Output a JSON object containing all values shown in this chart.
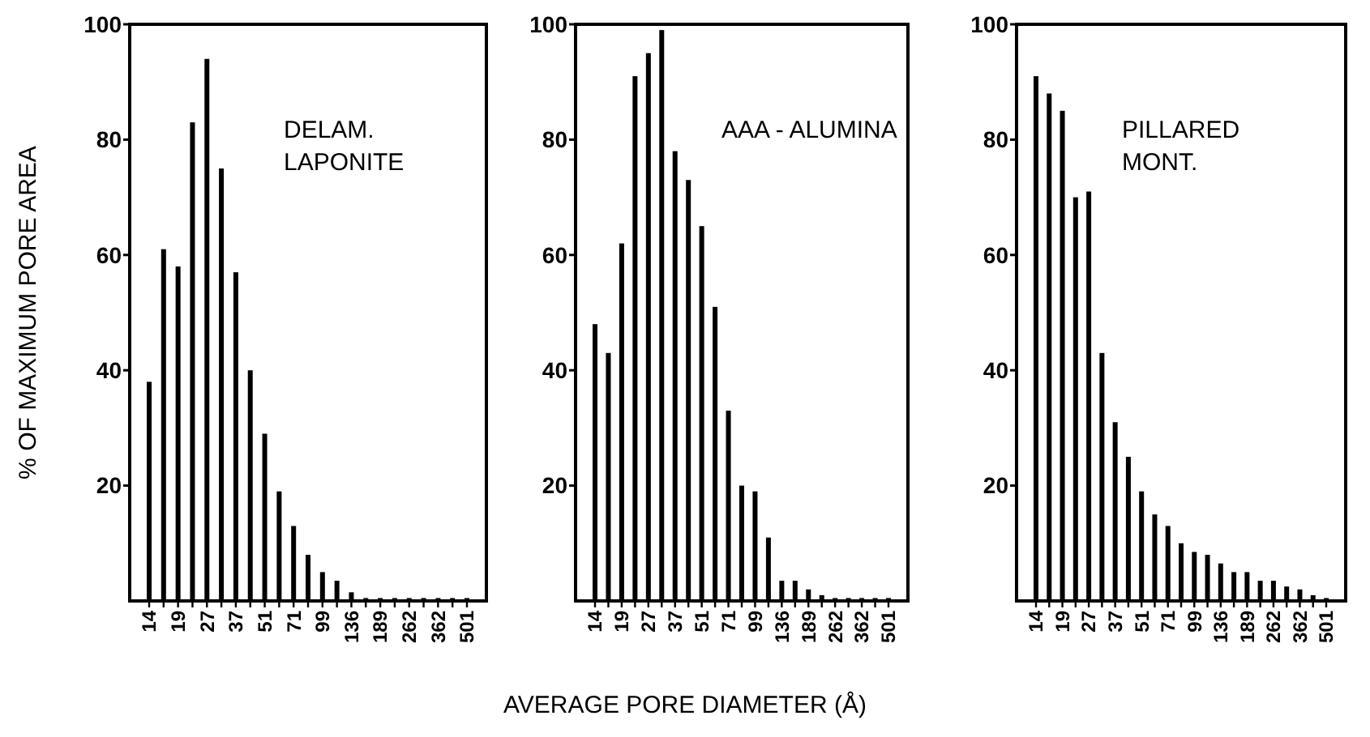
{
  "chart_data": [
    {
      "type": "bar",
      "ylabel": "% OF MAXIMUM PORE AREA",
      "annotations": [
        "DELAM.\nLAPONITE"
      ],
      "categories": [
        "14",
        null,
        "19",
        null,
        "27",
        null,
        "37",
        null,
        "51",
        null,
        "71",
        null,
        "99",
        null,
        "136",
        null,
        "189",
        null,
        "262",
        null,
        "362",
        null,
        "501"
      ],
      "values": [
        38,
        61,
        58,
        83,
        94,
        75,
        57,
        40,
        29,
        19,
        13,
        8,
        5,
        3.5,
        1.5,
        0.5,
        0.5,
        0.5,
        0.5,
        0.5,
        0.5,
        0.5,
        0.5
      ],
      "color": "#000000",
      "ylim": [
        0,
        100
      ],
      "yticks": [
        20,
        40,
        60,
        80,
        100
      ],
      "grid": false
    },
    {
      "type": "bar",
      "xlabel": "AVERAGE PORE DIAMETER (Å)",
      "annotations": [
        "AAA - ALUMINA"
      ],
      "categories": [
        "14",
        null,
        "19",
        null,
        "27",
        null,
        "37",
        null,
        "51",
        null,
        "71",
        null,
        "99",
        null,
        "136",
        null,
        "189",
        null,
        "262",
        null,
        "362",
        null,
        "501"
      ],
      "values": [
        48,
        43,
        62,
        91,
        95,
        99,
        78,
        73,
        65,
        51,
        33,
        20,
        19,
        11,
        3.5,
        3.5,
        2,
        1,
        0.5,
        0.5,
        0.5,
        0.5,
        0.5
      ],
      "color": "#000000",
      "ylim": [
        0,
        100
      ],
      "yticks": [
        20,
        40,
        60,
        80,
        100
      ],
      "grid": false
    },
    {
      "type": "bar",
      "annotations": [
        "PILLARED\nMONT."
      ],
      "categories": [
        "14",
        null,
        "19",
        null,
        "27",
        null,
        "37",
        null,
        "51",
        null,
        "71",
        null,
        "99",
        null,
        "136",
        null,
        "189",
        null,
        "262",
        null,
        "362",
        null,
        "501"
      ],
      "values": [
        91,
        88,
        85,
        70,
        71,
        43,
        31,
        25,
        19,
        15,
        13,
        10,
        8.5,
        8,
        6.5,
        5,
        5,
        3.5,
        3.5,
        2.5,
        2,
        1,
        0.5
      ],
      "color": "#000000",
      "ylim": [
        0,
        100
      ],
      "yticks": [
        20,
        40,
        60,
        80,
        100
      ],
      "grid": false
    }
  ]
}
